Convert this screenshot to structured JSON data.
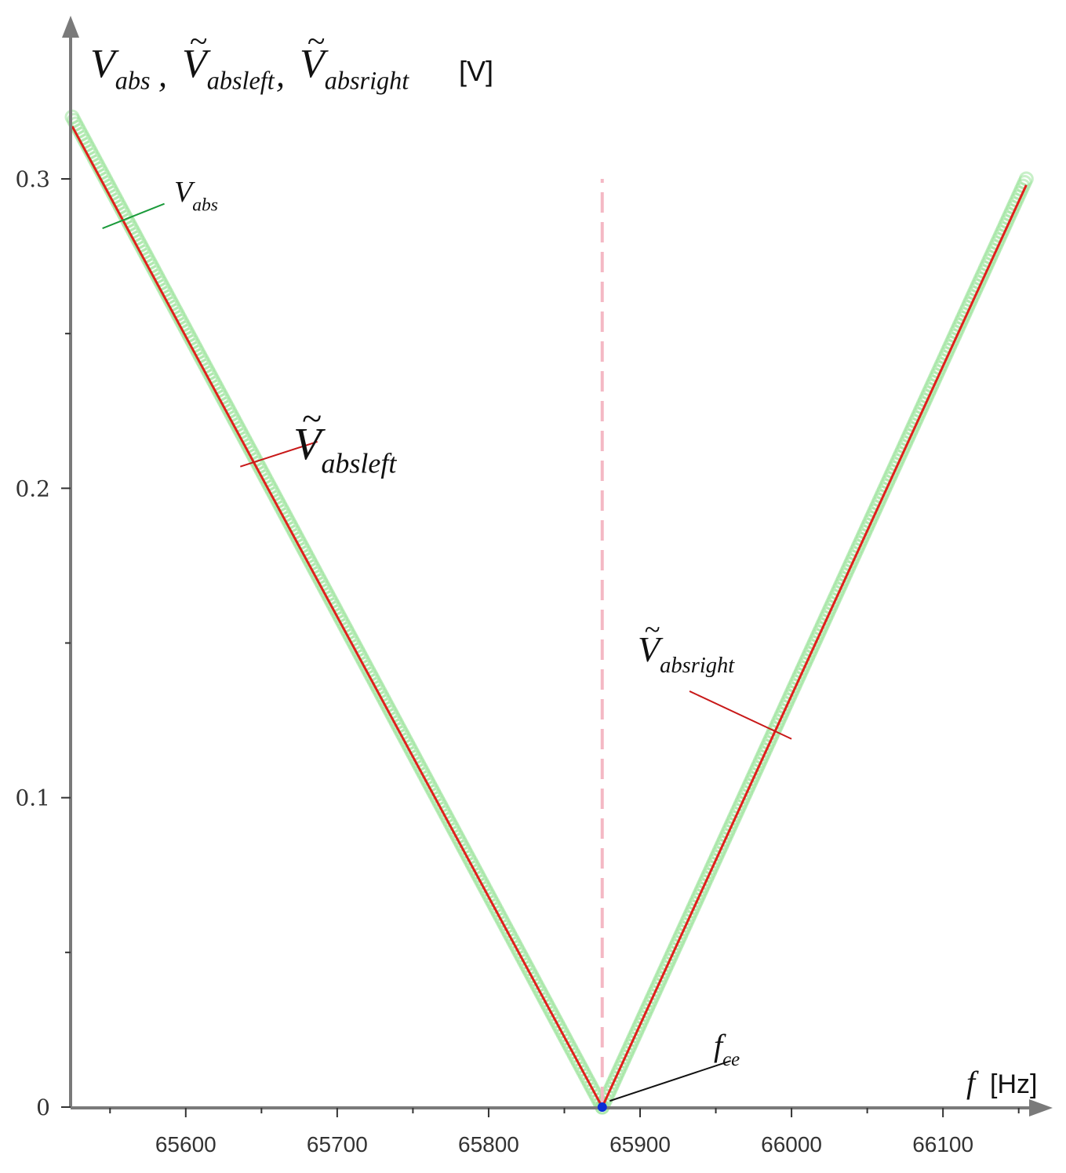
{
  "chart_data": {
    "type": "line",
    "xlabel": {
      "symbol": "f",
      "unit": "[Hz]"
    },
    "ylabel": {
      "terms": [
        {
          "base": "V",
          "sub": "abs",
          "tilde": false
        },
        {
          "base": "V",
          "sub": "absleft",
          "tilde": true
        },
        {
          "base": "V",
          "sub": "absright",
          "tilde": true
        }
      ],
      "separator": ",",
      "unit": "[V]"
    },
    "xlim": [
      65525,
      66160
    ],
    "ylim": [
      0,
      0.34
    ],
    "x_ticks": [
      65600,
      65700,
      65800,
      65900,
      66000,
      66100
    ],
    "x_tick_labels": [
      "65600",
      "65700",
      "65800",
      "65900",
      "66000",
      "66100"
    ],
    "x_minor_ticks": [
      65550,
      65650,
      65750,
      65850,
      65950,
      66050,
      66150
    ],
    "y_ticks": [
      0,
      0.1,
      0.2,
      0.3
    ],
    "y_tick_labels": [
      "0",
      "0.1",
      "0.2",
      "0.3"
    ],
    "y_minor_ticks": [
      0.05,
      0.15,
      0.25
    ],
    "grid": false,
    "series": [
      {
        "name": "V_abs",
        "style": "markers",
        "color": "#9be39b",
        "x": [
          65525,
          65875,
          66155
        ],
        "y": [
          0.32,
          0.0,
          0.3
        ]
      },
      {
        "name": "Ṽ_absleft",
        "style": "line",
        "color": "#e0201c",
        "x": [
          65525,
          65875
        ],
        "y": [
          0.317,
          0.0
        ]
      },
      {
        "name": "Ṽ_absright",
        "style": "line",
        "color": "#e0201c",
        "x": [
          65875,
          66155
        ],
        "y": [
          0.0,
          0.298
        ]
      }
    ],
    "reference_line": {
      "x": 65875,
      "y_range": [
        0,
        0.3
      ],
      "color": "#f4b8c4",
      "style": "dashed"
    },
    "point": {
      "x": 65875,
      "y": 0,
      "color": "#0a2fd6"
    },
    "annotations": [
      {
        "id": "v-abs",
        "base": "V",
        "sub": "abs",
        "tilde": false,
        "color": "#1a9a3a",
        "at": [
          65545,
          0.284
        ],
        "text_at": [
          65560,
          0.295
        ]
      },
      {
        "id": "v-absleft",
        "base": "V",
        "sub": "absleft",
        "tilde": true,
        "color": "#c81818",
        "at": [
          65636,
          0.207
        ],
        "text_at": [
          65660,
          0.21
        ]
      },
      {
        "id": "v-absright",
        "base": "V",
        "sub": "absright",
        "tilde": true,
        "color": "#c81818",
        "at": [
          66000,
          0.119
        ],
        "text_at": [
          65885,
          0.14
        ]
      },
      {
        "id": "f-ce",
        "base": "f",
        "sub": "ce",
        "tilde": false,
        "color": "#111111",
        "at": [
          65880,
          0.002
        ],
        "text_at": [
          65935,
          0.018
        ]
      }
    ]
  }
}
